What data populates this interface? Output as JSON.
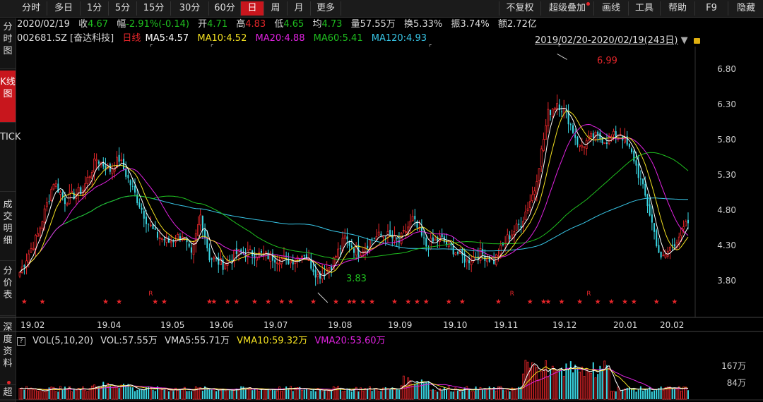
{
  "tabs": [
    "分时",
    "多日",
    "1分",
    "5分",
    "15分",
    "30分",
    "60分",
    "日",
    "周",
    "月",
    "更多"
  ],
  "active_tab": "日",
  "right_buttons": [
    "不复权",
    "超级叠加",
    "画线",
    "工具",
    "帮助",
    "F9",
    "隐藏"
  ],
  "sidebar": [
    "分时图",
    "K线图",
    "TICK",
    "成交明细",
    "分价表",
    "深度资料",
    "超"
  ],
  "quote": {
    "date": "2020/02/19",
    "close_label": "收",
    "close": "4.67",
    "change_label": "幅",
    "change": "-2.91%(-0.14)",
    "open_label": "开",
    "open": "4.71",
    "high_label": "高",
    "high": "4.83",
    "low_label": "低",
    "low": "4.65",
    "avg_label": "均",
    "avg": "4.73",
    "vol_label": "量",
    "vol": "57.55万",
    "turnover_label": "换",
    "turnover": "5.33%",
    "amp_label": "振",
    "amp": "3.74%",
    "amount_label": "额",
    "amount": "2.72亿"
  },
  "ma_bar": {
    "code": "002681.SZ [奋达科技]",
    "period": "日线",
    "ma5": "MA5:4.57",
    "ma10": "MA10:4.52",
    "ma20": "MA20:4.88",
    "ma60": "MA60:5.41",
    "ma120": "MA120:4.93"
  },
  "range_text": "2019/02/20-2020/02/19(243日)",
  "price_axis": [
    "6.80",
    "6.30",
    "5.80",
    "5.30",
    "4.80",
    "4.30",
    "3.80"
  ],
  "date_axis": [
    "19.02",
    "19.04",
    "19.05",
    "19.06",
    "19.07",
    "19.08",
    "19.09",
    "19.10",
    "19.11",
    "19.12",
    "20.01",
    "20.02"
  ],
  "annotations": {
    "max": "6.99",
    "min": "3.83"
  },
  "vol_bar": {
    "ind": "VOL(5,10,20)",
    "vol": "VOL:57.55万",
    "vma5": "VMA5:55.71万",
    "vma10": "VMA10:59.32万",
    "vma20": "VMA20:53.60万"
  },
  "vol_axis": [
    "167万",
    "84万"
  ],
  "colors": {
    "up": "#e5262a",
    "down": "#3ad7e4",
    "ma5": "#ffffff",
    "ma10": "#f3e021",
    "ma20": "#e022e0",
    "ma60": "#1fbf1f",
    "ma120": "#38c7e8",
    "accent": "#c8161d"
  },
  "chart_data": {
    "type": "candlestick",
    "ylim": [
      3.55,
      7.05
    ],
    "key_points": [
      {
        "date": "2019/02/20",
        "close": 4.1
      },
      {
        "date": "2019/04 peak",
        "close": 5.8
      },
      {
        "date": "2019/08 low",
        "low": 3.83
      },
      {
        "date": "2019/12 peak",
        "high": 6.99
      },
      {
        "date": "2020/02/19",
        "open": 4.71,
        "high": 4.83,
        "low": 4.65,
        "close": 4.67
      }
    ]
  }
}
